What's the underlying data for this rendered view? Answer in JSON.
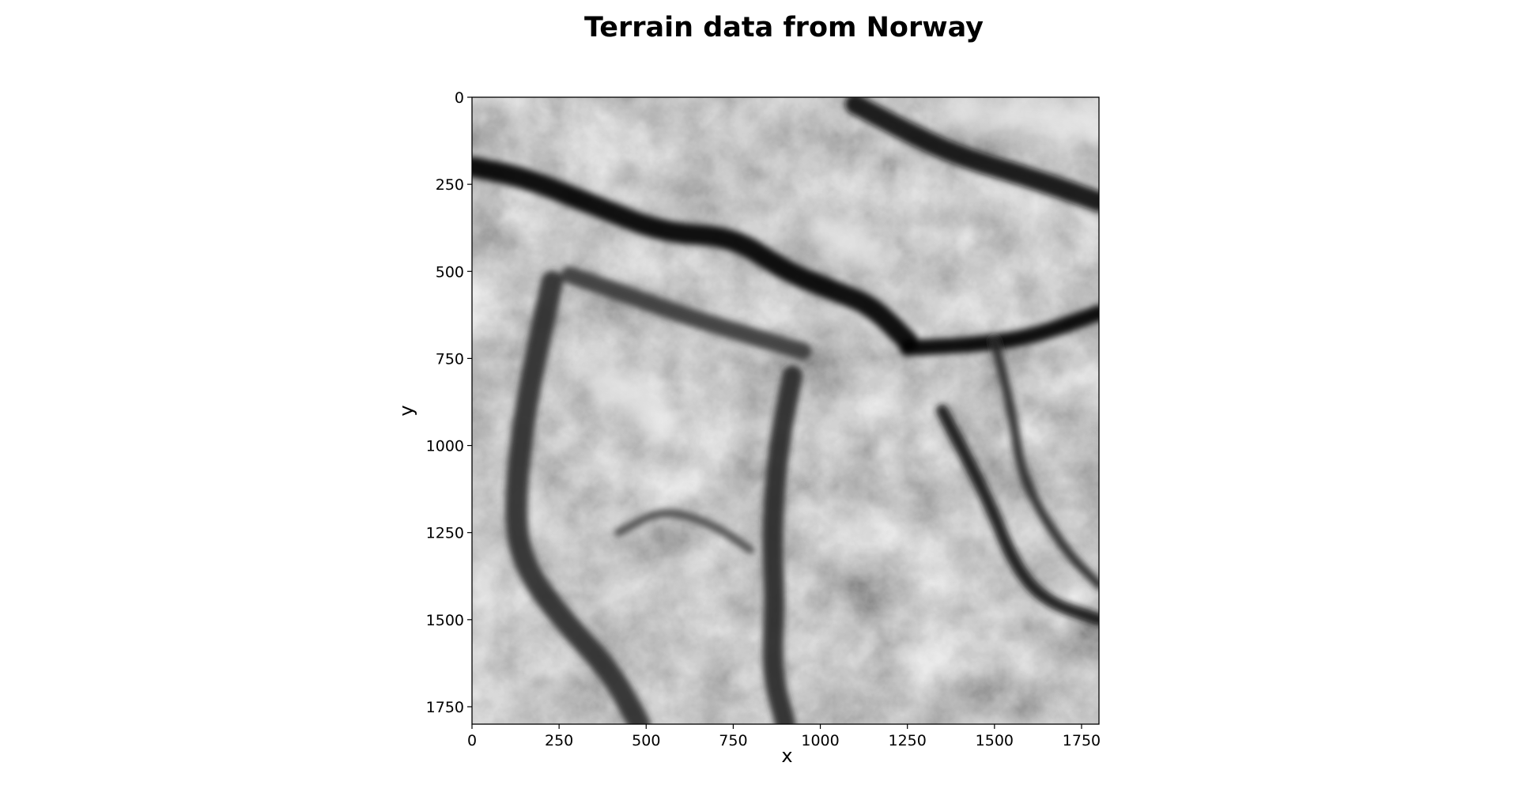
{
  "chart_data": {
    "type": "heatmap",
    "title": "Terrain data from Norway",
    "xlabel": "x",
    "ylabel": "y",
    "xlim": [
      0,
      1800
    ],
    "ylim": [
      1800,
      0
    ],
    "y_axis_inverted": true,
    "colormap": "gray",
    "grid": false,
    "legend": "none",
    "xticks": [
      0,
      250,
      500,
      750,
      1000,
      1250,
      1500,
      1750
    ],
    "yticks": [
      0,
      250,
      500,
      750,
      1000,
      1250,
      1500,
      1750
    ],
    "xtick_labels": [
      "0",
      "250",
      "500",
      "750",
      "1000",
      "1250",
      "1500",
      "1750"
    ],
    "ytick_labels": [
      "0",
      "250",
      "500",
      "750",
      "1000",
      "1250",
      "1500",
      "1750"
    ],
    "features": {
      "dark_valleys": [
        {
          "points": [
            [
              0,
              200
            ],
            [
              150,
              230
            ],
            [
              350,
              310
            ],
            [
              550,
              390
            ],
            [
              750,
              400
            ],
            [
              900,
              500
            ],
            [
              1050,
              560
            ],
            [
              1150,
              600
            ],
            [
              1250,
              700
            ]
          ]
        },
        {
          "points": [
            [
              1100,
              20
            ],
            [
              1250,
              100
            ],
            [
              1400,
              170
            ],
            [
              1600,
              230
            ],
            [
              1800,
              300
            ]
          ]
        },
        {
          "points": [
            [
              1250,
              720
            ],
            [
              1450,
              710
            ],
            [
              1600,
              690
            ],
            [
              1800,
              620
            ]
          ]
        },
        {
          "points": [
            [
              280,
              510
            ],
            [
              450,
              570
            ],
            [
              650,
              640
            ],
            [
              850,
              700
            ],
            [
              950,
              730
            ]
          ]
        },
        {
          "points": [
            [
              920,
              800
            ],
            [
              880,
              1000
            ],
            [
              860,
              1250
            ],
            [
              870,
              1450
            ],
            [
              860,
              1650
            ],
            [
              900,
              1800
            ]
          ]
        },
        {
          "points": [
            [
              230,
              530
            ],
            [
              150,
              900
            ],
            [
              120,
              1200
            ],
            [
              150,
              1350
            ],
            [
              260,
              1500
            ],
            [
              400,
              1650
            ],
            [
              480,
              1800
            ]
          ]
        },
        {
          "points": [
            [
              1350,
              900
            ],
            [
              1480,
              1150
            ],
            [
              1560,
              1350
            ],
            [
              1650,
              1450
            ],
            [
              1800,
              1500
            ]
          ]
        },
        {
          "points": [
            [
              1500,
              700
            ],
            [
              1550,
              900
            ],
            [
              1580,
              1100
            ],
            [
              1700,
              1300
            ],
            [
              1800,
              1400
            ]
          ]
        },
        {
          "points": [
            [
              420,
              1250
            ],
            [
              550,
              1180
            ],
            [
              700,
              1230
            ],
            [
              800,
              1300
            ]
          ]
        }
      ],
      "bright_ridges": [
        {
          "points": [
            [
              1400,
              40
            ],
            [
              1600,
              60
            ],
            [
              1800,
              80
            ]
          ]
        },
        {
          "points": [
            [
              350,
              800
            ],
            [
              450,
              850
            ],
            [
              550,
              950
            ]
          ]
        },
        {
          "points": [
            [
              1000,
              380
            ],
            [
              1100,
              420
            ],
            [
              1150,
              450
            ]
          ]
        }
      ]
    }
  }
}
